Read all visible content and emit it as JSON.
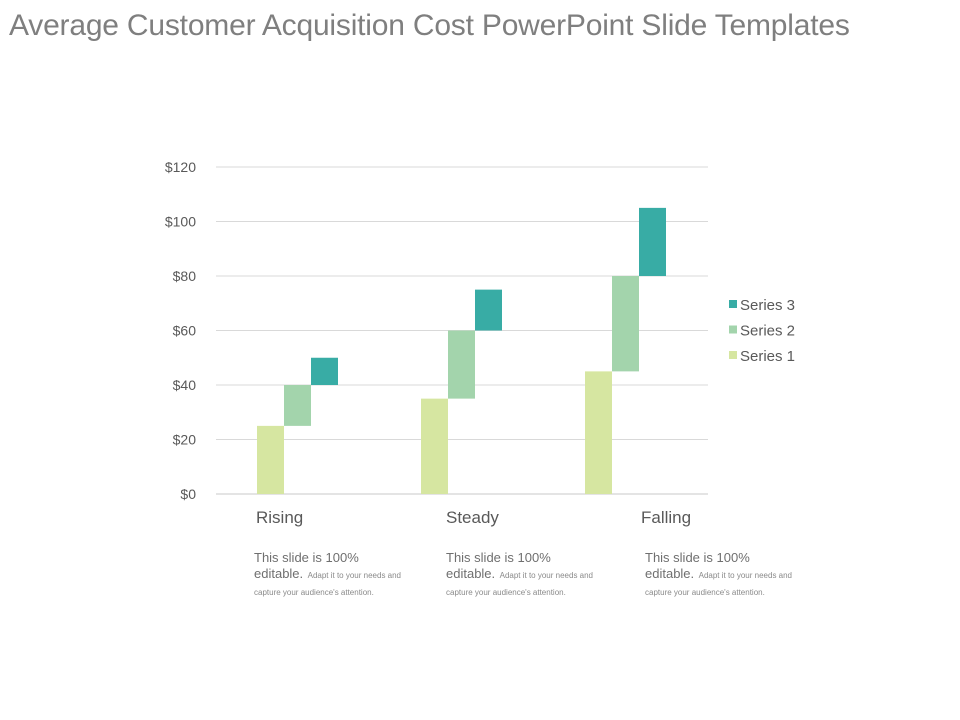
{
  "slide": {
    "title": "Average Customer Acquisition Cost PowerPoint Slide Templates"
  },
  "colors": {
    "series1": "#d6e6a1",
    "series2": "#a3d4ac",
    "series3": "#38aca5",
    "grid": "#d9d9d9",
    "axis": "#c8c8c8"
  },
  "chart_data": {
    "type": "bar",
    "subtype": "stacked-waterfall",
    "title": "",
    "xlabel": "",
    "ylabel": "",
    "ylim": [
      0,
      120
    ],
    "yticks": [
      0,
      20,
      40,
      60,
      80,
      100,
      120
    ],
    "ytick_labels": [
      "$0",
      "$20",
      "$40",
      "$60",
      "$80",
      "$100",
      "$120"
    ],
    "categories": [
      "Rising",
      "Steady",
      "Falling"
    ],
    "series": [
      {
        "name": "Series 1",
        "color": "#d6e6a1",
        "base": [
          0,
          0,
          0
        ],
        "values": [
          25,
          35,
          45
        ]
      },
      {
        "name": "Series 2",
        "color": "#a3d4ac",
        "base": [
          25,
          35,
          45
        ],
        "values": [
          15,
          25,
          35
        ]
      },
      {
        "name": "Series 3",
        "color": "#38aca5",
        "base": [
          40,
          60,
          80
        ],
        "values": [
          10,
          15,
          25
        ]
      }
    ],
    "legend": {
      "placement": "right",
      "entries": [
        "Series 3",
        "Series 2",
        "Series 1"
      ]
    }
  },
  "captions": [
    {
      "lead": "This slide is 100% editable.",
      "small": "Adapt it to your needs and capture your audience's attention."
    },
    {
      "lead": "This slide is 100% editable.",
      "small": "Adapt it to your needs and capture your audience's attention."
    },
    {
      "lead": "This slide is 100% editable.",
      "small": "Adapt it to your needs and capture your audience's attention."
    }
  ]
}
